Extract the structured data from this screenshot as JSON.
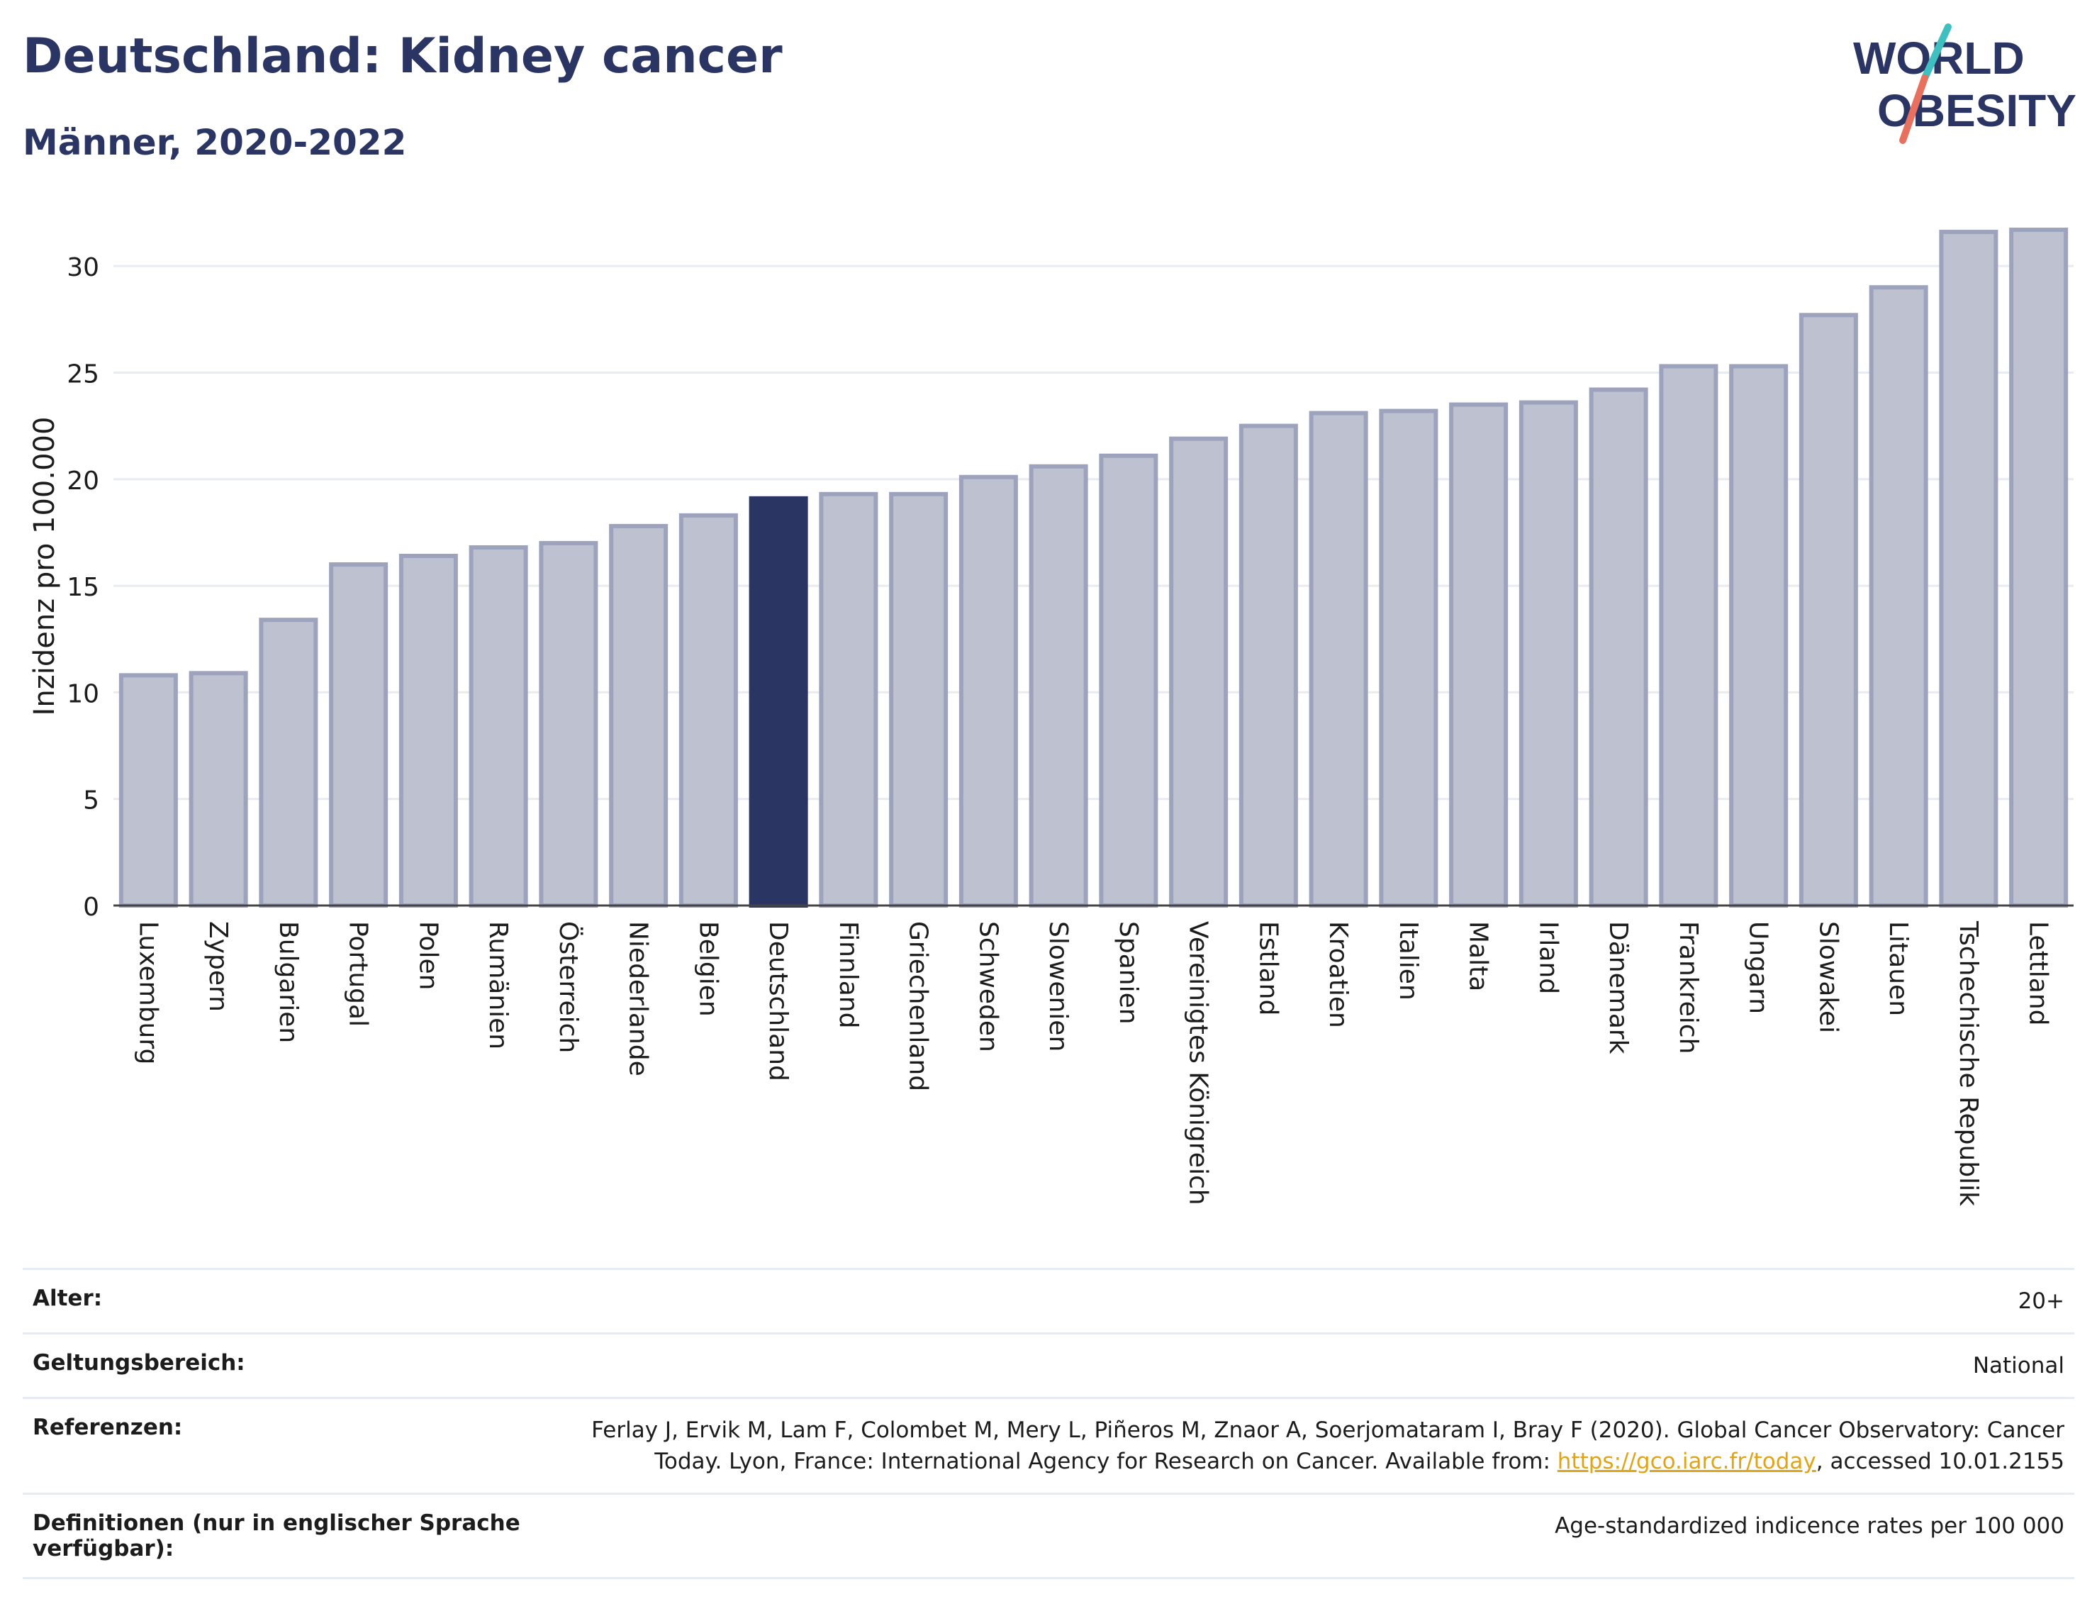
{
  "header": {
    "title": "Deutschland: Kidney cancer",
    "subtitle": "Männer, 2020-2022"
  },
  "logo": {
    "line1": "WORLD",
    "line2": "OBESITY"
  },
  "colors": {
    "bar": "#bec1cf",
    "bar_border": "#9ea3bd",
    "highlight": "#2b3563",
    "grid": "#e8ebf0",
    "logo_teal": "#3fbfbf",
    "logo_coral": "#e8705f"
  },
  "chart_data": {
    "type": "bar",
    "title": "Deutschland: Kidney cancer",
    "subtitle": "Männer, 2020-2022",
    "ylabel": "Inzidenz pro 100.000",
    "xlabel": "",
    "ylim": [
      0,
      32.5
    ],
    "yticks": [
      0,
      5,
      10,
      15,
      20,
      25,
      30
    ],
    "grid": true,
    "highlight": "Deutschland",
    "categories": [
      "Luxemburg",
      "Zypern",
      "Bulgarien",
      "Portugal",
      "Polen",
      "Rumänien",
      "Österreich",
      "Niederlande",
      "Belgien",
      "Deutschland",
      "Finnland",
      "Griechenland",
      "Schweden",
      "Slowenien",
      "Spanien",
      "Vereinigtes Königreich",
      "Estland",
      "Kroatien",
      "Italien",
      "Malta",
      "Irland",
      "Dänemark",
      "Frankreich",
      "Ungarn",
      "Slowakei",
      "Litauen",
      "Tschechische Republik",
      "Lettland"
    ],
    "values": [
      10.8,
      10.9,
      13.4,
      16.0,
      16.4,
      16.8,
      17.0,
      17.8,
      18.3,
      19.1,
      19.3,
      19.3,
      20.1,
      20.6,
      21.1,
      21.9,
      22.5,
      23.1,
      23.2,
      23.5,
      23.6,
      24.2,
      25.3,
      25.3,
      27.7,
      29.0,
      31.6,
      31.7
    ]
  },
  "footer": {
    "rows": [
      {
        "label": "Alter:",
        "value": "20+"
      },
      {
        "label": "Geltungsbereich:",
        "value": "National"
      },
      {
        "label": "Referenzen:",
        "value_pre": "Ferlay J, Ervik M, Lam F, Colombet M, Mery L, Piñeros M, Znaor A, Soerjomataram I, Bray F (2020). Global Cancer Observatory: Cancer Today. Lyon, France: International Agency for Research on Cancer. Available from: ",
        "link": "https://gco.iarc.fr/today",
        "value_post": ", accessed 10.01.2155"
      },
      {
        "label": "Definitionen (nur in englischer Sprache verfügbar):",
        "value": "Age-standardized indicence rates per 100 000"
      }
    ]
  }
}
